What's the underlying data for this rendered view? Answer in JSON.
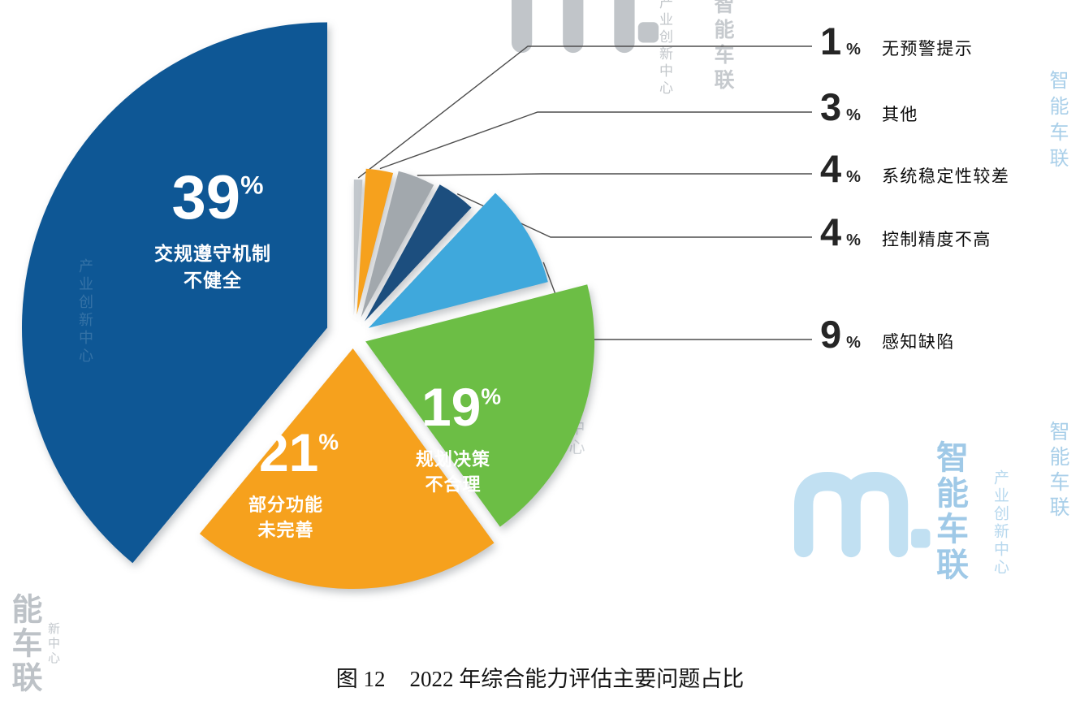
{
  "figure": {
    "caption_prefix": "图 12",
    "caption_text": "2022 年综合能力评估主要问题占比"
  },
  "chart_data": {
    "type": "pie",
    "title": "2022 年综合能力评估主要问题占比",
    "unit": "%",
    "start_angle_deg": -90,
    "direction": "clockwise",
    "legend_position": "right",
    "slices": [
      {
        "label": "无预警提示",
        "value": 1,
        "color": "#c3c8cd",
        "legend": true
      },
      {
        "label": "其他",
        "value": 3,
        "color": "#f6a11d",
        "legend": true
      },
      {
        "label": "系统稳定性较差",
        "value": 4,
        "color": "#a2a8ad",
        "legend": true
      },
      {
        "label": "控制精度不高",
        "value": 4,
        "color": "#1c4e7e",
        "legend": true
      },
      {
        "label": "感知缺陷",
        "value": 9,
        "color": "#3fa8dc",
        "legend": true
      },
      {
        "label": "规划决策不合理",
        "value": 19,
        "color": "#6cbe45",
        "inside_lines": [
          "规划决策",
          "不合理"
        ]
      },
      {
        "label": "部分功能未完善",
        "value": 21,
        "color": "#f6a11d",
        "inside_lines": [
          "部分功能",
          "未完善"
        ]
      },
      {
        "label": "交规遵守机制不健全",
        "value": 39,
        "color": "#0e5795",
        "inside_lines": [
          "交规遵守机制",
          "不健全"
        ]
      }
    ]
  },
  "watermark": {
    "logo": "m",
    "brand": "智能车联",
    "brand_partial": "能车联",
    "subbrand": "产业创新中心",
    "subbrand_partial": "新中心"
  }
}
